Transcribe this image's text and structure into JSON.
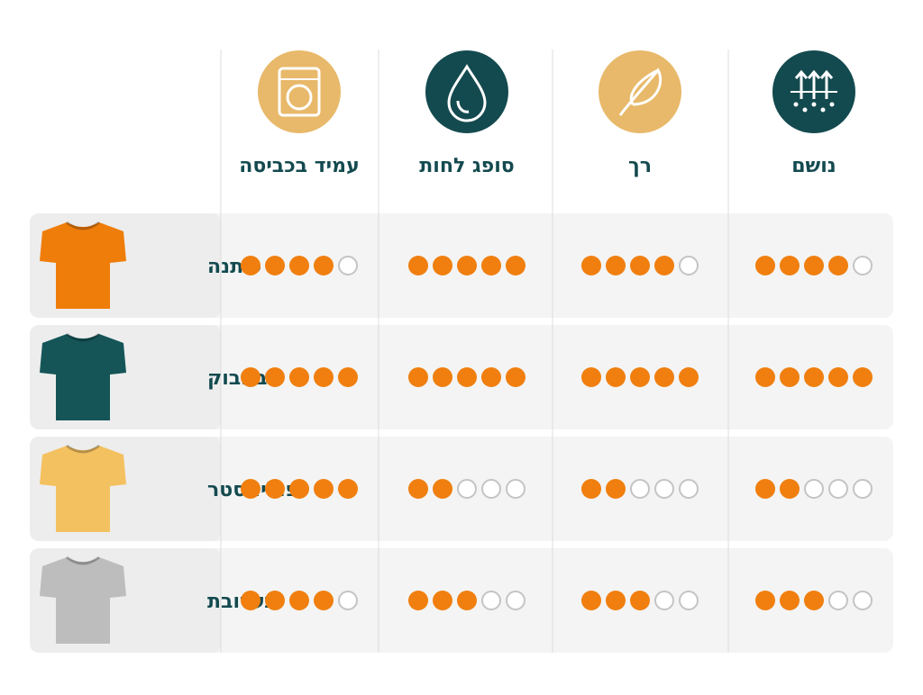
{
  "max_rating": 5,
  "columns": [
    {
      "label": "נושם",
      "icon_color": "#134a4f"
    },
    {
      "label": "רך",
      "icon_color": "#e8b96a"
    },
    {
      "label": "סופג לחות",
      "icon_color": "#134a4f"
    },
    {
      "label": "עמיד בכביסה",
      "icon_color": "#e8b96a"
    }
  ],
  "rows": [
    {
      "label": "כותנה",
      "color": "#ef7d0a",
      "ratings": [
        4,
        4,
        5,
        4
      ]
    },
    {
      "label": "במבוק",
      "color": "#155558",
      "ratings": [
        5,
        5,
        5,
        5
      ]
    },
    {
      "label": "פוליאסטר",
      "color": "#f4c160",
      "ratings": [
        2,
        2,
        2,
        5
      ]
    },
    {
      "label": "תערובת",
      "color": "#bdbdbd",
      "ratings": [
        3,
        3,
        3,
        4
      ]
    }
  ]
}
